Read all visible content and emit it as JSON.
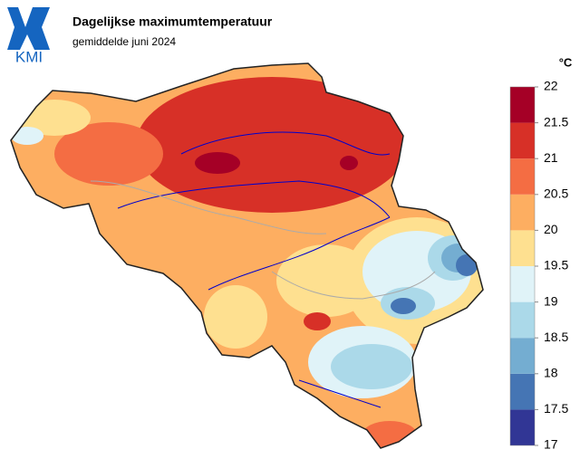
{
  "logo": {
    "text": "KMI"
  },
  "header": {
    "title": "Dagelijkse maximumtemperatuur",
    "subtitle": "gemiddelde juni 2024"
  },
  "legend": {
    "unit": "°C",
    "ticks": [
      17,
      17.5,
      18,
      18.5,
      19,
      19.5,
      20,
      20.5,
      21,
      21.5,
      22
    ],
    "colors": [
      "#313695",
      "#4575b4",
      "#74add1",
      "#abd9e9",
      "#e0f3f8",
      "#fee090",
      "#fdae61",
      "#f46d43",
      "#d73027",
      "#a50026"
    ]
  }
}
